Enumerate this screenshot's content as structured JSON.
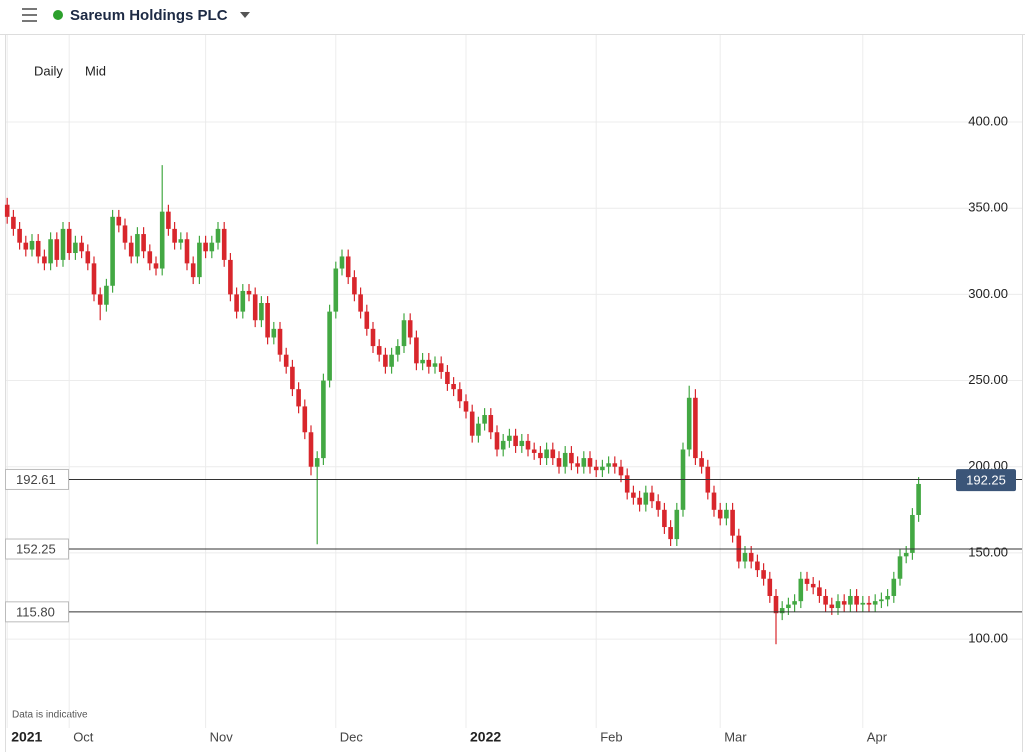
{
  "header": {
    "title": "Sareum Holdings PLC"
  },
  "chart_data": {
    "type": "candlestick",
    "interval": "Daily",
    "price_type": "Mid",
    "note": "Data is indicative",
    "up_color": "#43a843",
    "down_color": "#d8262c",
    "grid": true,
    "xlim": [
      -1,
      164
    ],
    "ylim": [
      48.4,
      450.5
    ],
    "xticks": [
      {
        "value": 0,
        "label": "2021"
      },
      {
        "value": 10,
        "label": "Oct"
      },
      {
        "value": 32,
        "label": "Nov"
      },
      {
        "value": 53,
        "label": "Dec"
      },
      {
        "value": 74,
        "label": "2022"
      },
      {
        "value": 95,
        "label": "Feb"
      },
      {
        "value": 115,
        "label": "Mar"
      },
      {
        "value": 138,
        "label": "Apr"
      }
    ],
    "yticks": [
      {
        "value": 100,
        "label": "100.00"
      },
      {
        "value": 150,
        "label": "150.00"
      },
      {
        "value": 200,
        "label": "200.00"
      },
      {
        "value": 250,
        "label": "250.00"
      },
      {
        "value": 300,
        "label": "300.00"
      },
      {
        "value": 350,
        "label": "350.00"
      },
      {
        "value": 400,
        "label": "400.00"
      }
    ],
    "levels": [
      192.61,
      152.25,
      {
        "value": 115.8,
        "label": "115.80"
      }
    ],
    "last_price": 192.25,
    "open": [
      352,
      345,
      338,
      330,
      326,
      331,
      322,
      318,
      332,
      320,
      338,
      324,
      330,
      325,
      318,
      300,
      294,
      305,
      345,
      340,
      330,
      322,
      335,
      325,
      318,
      315,
      348,
      338,
      330,
      332,
      318,
      310,
      330,
      325,
      330,
      338,
      320,
      300,
      290,
      302,
      300,
      285,
      295,
      275,
      280,
      265,
      258,
      245,
      235,
      220,
      200,
      205,
      250,
      290,
      315,
      322,
      310,
      300,
      290,
      280,
      270,
      265,
      258,
      265,
      270,
      285,
      275,
      260,
      262,
      258,
      260,
      255,
      248,
      245,
      238,
      232,
      218,
      225,
      230,
      220,
      210,
      215,
      218,
      212,
      215,
      210,
      208,
      205,
      210,
      205,
      200,
      208,
      202,
      200,
      205,
      200,
      198,
      200,
      202,
      200,
      195,
      185,
      182,
      178,
      185,
      180,
      175,
      165,
      158,
      175,
      210,
      240,
      205,
      200,
      185,
      175,
      170,
      175,
      160,
      145,
      150,
      145,
      140,
      135,
      125,
      115,
      118,
      120,
      122,
      135,
      132,
      130,
      125,
      120,
      118,
      122,
      120,
      125,
      120,
      121,
      120,
      122,
      123,
      125,
      135,
      148,
      150,
      172
    ],
    "high": [
      356,
      349,
      342,
      334,
      335,
      335,
      326,
      336,
      336,
      342,
      342,
      334,
      334,
      329,
      322,
      304,
      309,
      349,
      349,
      344,
      334,
      339,
      339,
      329,
      322,
      375,
      352,
      342,
      336,
      336,
      322,
      334,
      334,
      334,
      342,
      342,
      324,
      304,
      306,
      306,
      304,
      299,
      299,
      284,
      284,
      269,
      262,
      249,
      239,
      224,
      209,
      254,
      294,
      319,
      326,
      326,
      314,
      304,
      294,
      284,
      274,
      269,
      269,
      274,
      289,
      289,
      279,
      266,
      266,
      264,
      264,
      259,
      252,
      249,
      242,
      236,
      229,
      234,
      234,
      224,
      219,
      222,
      222,
      219,
      219,
      214,
      212,
      214,
      214,
      209,
      212,
      212,
      206,
      209,
      209,
      204,
      204,
      206,
      206,
      204,
      199,
      189,
      186,
      189,
      189,
      184,
      179,
      169,
      179,
      214,
      247,
      245,
      209,
      204,
      189,
      179,
      179,
      179,
      164,
      154,
      154,
      149,
      144,
      139,
      129,
      122,
      124,
      126,
      139,
      139,
      136,
      134,
      129,
      124,
      126,
      126,
      129,
      129,
      125,
      125,
      126,
      127,
      129,
      139,
      152,
      154,
      176,
      194
    ],
    "low": [
      341,
      334,
      326,
      322,
      322,
      318,
      314,
      314,
      316,
      316,
      320,
      320,
      321,
      314,
      296,
      285,
      290,
      301,
      336,
      326,
      318,
      318,
      321,
      314,
      311,
      311,
      334,
      326,
      326,
      314,
      306,
      306,
      321,
      321,
      326,
      316,
      296,
      286,
      286,
      296,
      281,
      281,
      271,
      271,
      261,
      254,
      241,
      231,
      216,
      195,
      155,
      201,
      246,
      286,
      311,
      306,
      296,
      286,
      276,
      266,
      261,
      254,
      254,
      261,
      266,
      271,
      256,
      256,
      254,
      254,
      251,
      244,
      241,
      234,
      228,
      214,
      214,
      221,
      216,
      206,
      206,
      211,
      208,
      208,
      206,
      204,
      201,
      201,
      201,
      196,
      196,
      198,
      196,
      196,
      196,
      194,
      194,
      196,
      196,
      191,
      181,
      178,
      174,
      174,
      176,
      171,
      161,
      154,
      154,
      171,
      206,
      201,
      196,
      181,
      171,
      166,
      166,
      156,
      141,
      141,
      141,
      136,
      131,
      121,
      97,
      111,
      114,
      116,
      118,
      128,
      126,
      121,
      116,
      114,
      114,
      116,
      116,
      116,
      116,
      116,
      116,
      118,
      119,
      121,
      131,
      144,
      146,
      168
    ],
    "close": [
      345,
      338,
      330,
      326,
      331,
      322,
      318,
      332,
      320,
      338,
      324,
      330,
      325,
      318,
      300,
      294,
      305,
      345,
      340,
      330,
      322,
      335,
      325,
      318,
      315,
      348,
      338,
      330,
      332,
      318,
      310,
      330,
      325,
      330,
      338,
      320,
      300,
      290,
      302,
      300,
      285,
      295,
      275,
      280,
      265,
      258,
      245,
      235,
      220,
      200,
      205,
      250,
      290,
      315,
      322,
      310,
      300,
      290,
      280,
      270,
      265,
      258,
      265,
      270,
      285,
      275,
      260,
      262,
      258,
      260,
      255,
      248,
      245,
      238,
      232,
      218,
      225,
      230,
      220,
      210,
      215,
      218,
      212,
      215,
      210,
      208,
      205,
      210,
      205,
      200,
      208,
      202,
      200,
      205,
      200,
      198,
      200,
      202,
      200,
      195,
      185,
      182,
      178,
      185,
      180,
      175,
      165,
      158,
      175,
      210,
      240,
      205,
      200,
      185,
      175,
      170,
      175,
      160,
      145,
      150,
      145,
      140,
      135,
      125,
      115,
      118,
      120,
      122,
      135,
      132,
      130,
      125,
      120,
      118,
      122,
      120,
      125,
      120,
      121,
      120,
      122,
      123,
      125,
      135,
      148,
      150,
      172,
      190
    ]
  }
}
